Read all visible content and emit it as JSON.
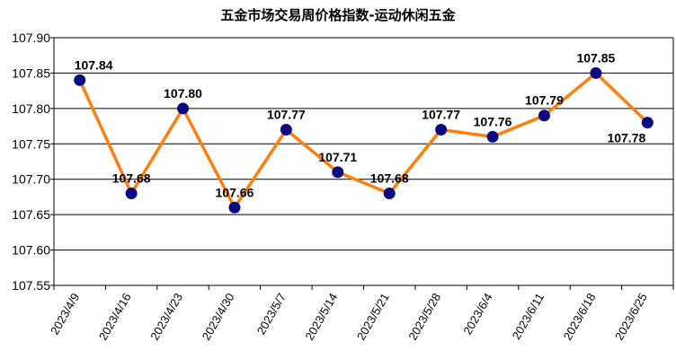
{
  "chart_data": {
    "type": "line",
    "title": "五金市场交易周价格指数-运动休闲五金",
    "categories": [
      "2023/4/9",
      "2023/4/16",
      "2023/4/23",
      "2023/4/30",
      "2023/5/7",
      "2023/5/14",
      "2023/5/21",
      "2023/5/28",
      "2023/6/4",
      "2023/6/11",
      "2023/6/18",
      "2023/6/25"
    ],
    "values": [
      107.84,
      107.68,
      107.8,
      107.66,
      107.77,
      107.71,
      107.68,
      107.77,
      107.76,
      107.79,
      107.85,
      107.78
    ],
    "data_labels": [
      "107.84",
      "107.68",
      "107.80",
      "107.66",
      "107.77",
      "107.71",
      "107.68",
      "107.77",
      "107.76",
      "107.79",
      "107.85",
      "107.78"
    ],
    "y_ticks": [
      "107.55",
      "107.60",
      "107.65",
      "107.70",
      "107.75",
      "107.80",
      "107.85",
      "107.90"
    ],
    "ylim": [
      107.55,
      107.9
    ],
    "xlabel": "",
    "ylabel": "",
    "grid": "horizontal",
    "legend": "none",
    "line_color": "#ff7f0e",
    "marker_color": "#0a0a80"
  }
}
